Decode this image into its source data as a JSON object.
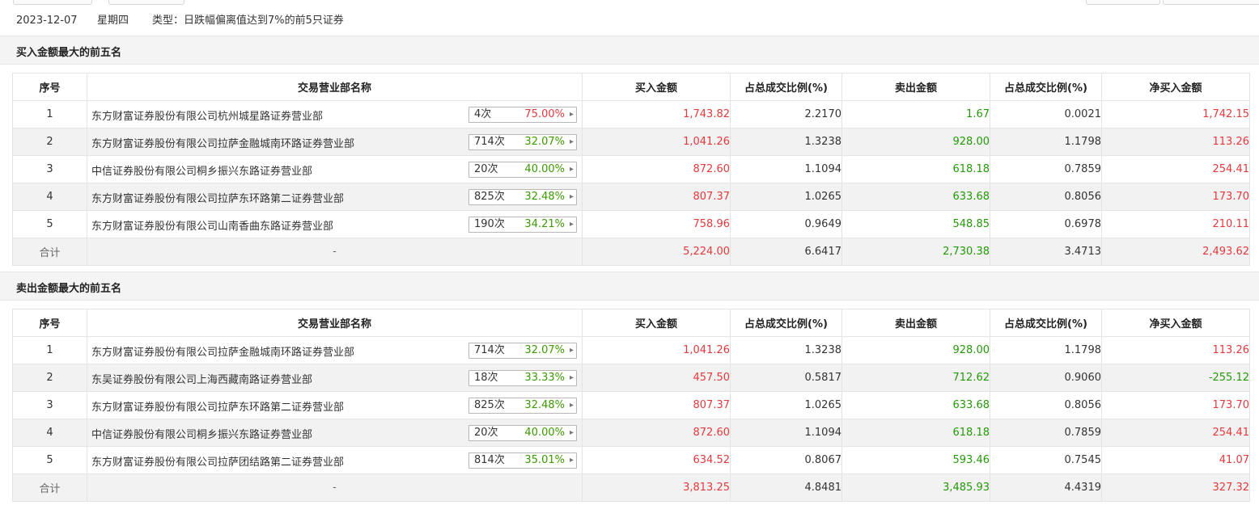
{
  "info": {
    "date": "2023-12-07",
    "weekday": "星期四",
    "type_label": "类型：日跌幅偏离值达到7%的前5只证券"
  },
  "columns": [
    "序号",
    "交易营业部名称",
    "买入金额",
    "占总成交比例(%)",
    "卖出金额",
    "占总成交比例(%)",
    "净买入金额"
  ],
  "colors": {
    "up": "#e4393c",
    "down": "#249908",
    "stripe": "#f2f2f2"
  },
  "buy_section": {
    "title": "买入金额最大的前五名",
    "rows": [
      {
        "rank": "1",
        "name": "东方财富证券股份有限公司杭州城星路证券营业部",
        "count": "4次",
        "pct": "75.00%",
        "pct_color": "red",
        "buy": "1,743.82",
        "buy_ratio": "2.2170",
        "sell": "1.67",
        "sell_ratio": "0.0021",
        "net": "1,742.15"
      },
      {
        "rank": "2",
        "name": "东方财富证券股份有限公司拉萨金融城南环路证券营业部",
        "count": "714次",
        "pct": "32.07%",
        "pct_color": "green",
        "buy": "1,041.26",
        "buy_ratio": "1.3238",
        "sell": "928.00",
        "sell_ratio": "1.1798",
        "net": "113.26"
      },
      {
        "rank": "3",
        "name": "中信证券股份有限公司桐乡振兴东路证券营业部",
        "count": "20次",
        "pct": "40.00%",
        "pct_color": "green",
        "buy": "872.60",
        "buy_ratio": "1.1094",
        "sell": "618.18",
        "sell_ratio": "0.7859",
        "net": "254.41"
      },
      {
        "rank": "4",
        "name": "东方财富证券股份有限公司拉萨东环路第二证券营业部",
        "count": "825次",
        "pct": "32.48%",
        "pct_color": "green",
        "buy": "807.37",
        "buy_ratio": "1.0265",
        "sell": "633.68",
        "sell_ratio": "0.8056",
        "net": "173.70"
      },
      {
        "rank": "5",
        "name": "东方财富证券股份有限公司山南香曲东路证券营业部",
        "count": "190次",
        "pct": "34.21%",
        "pct_color": "green",
        "buy": "758.96",
        "buy_ratio": "0.9649",
        "sell": "548.85",
        "sell_ratio": "0.6978",
        "net": "210.11"
      }
    ],
    "total": {
      "label": "合计",
      "name": "-",
      "buy": "5,224.00",
      "buy_ratio": "6.6417",
      "sell": "2,730.38",
      "sell_ratio": "3.4713",
      "net": "2,493.62"
    }
  },
  "sell_section": {
    "title": "卖出金额最大的前五名",
    "rows": [
      {
        "rank": "1",
        "name": "东方财富证券股份有限公司拉萨金融城南环路证券营业部",
        "count": "714次",
        "pct": "32.07%",
        "pct_color": "green",
        "buy": "1,041.26",
        "buy_ratio": "1.3238",
        "sell": "928.00",
        "sell_ratio": "1.1798",
        "net": "113.26"
      },
      {
        "rank": "2",
        "name": "东吴证券股份有限公司上海西藏南路证券营业部",
        "count": "18次",
        "pct": "33.33%",
        "pct_color": "green",
        "buy": "457.50",
        "buy_ratio": "0.5817",
        "sell": "712.62",
        "sell_ratio": "0.9060",
        "net": "-255.12"
      },
      {
        "rank": "3",
        "name": "东方财富证券股份有限公司拉萨东环路第二证券营业部",
        "count": "825次",
        "pct": "32.48%",
        "pct_color": "green",
        "buy": "807.37",
        "buy_ratio": "1.0265",
        "sell": "633.68",
        "sell_ratio": "0.8056",
        "net": "173.70"
      },
      {
        "rank": "4",
        "name": "中信证券股份有限公司桐乡振兴东路证券营业部",
        "count": "20次",
        "pct": "40.00%",
        "pct_color": "green",
        "buy": "872.60",
        "buy_ratio": "1.1094",
        "sell": "618.18",
        "sell_ratio": "0.7859",
        "net": "254.41"
      },
      {
        "rank": "5",
        "name": "东方财富证券股份有限公司拉萨团结路第二证券营业部",
        "count": "814次",
        "pct": "35.01%",
        "pct_color": "green",
        "buy": "634.52",
        "buy_ratio": "0.8067",
        "sell": "593.46",
        "sell_ratio": "0.7545",
        "net": "41.07"
      }
    ],
    "total": {
      "label": "合计",
      "name": "-",
      "buy": "3,813.25",
      "buy_ratio": "4.8481",
      "sell": "3,485.93",
      "sell_ratio": "4.4319",
      "net": "327.32"
    }
  }
}
